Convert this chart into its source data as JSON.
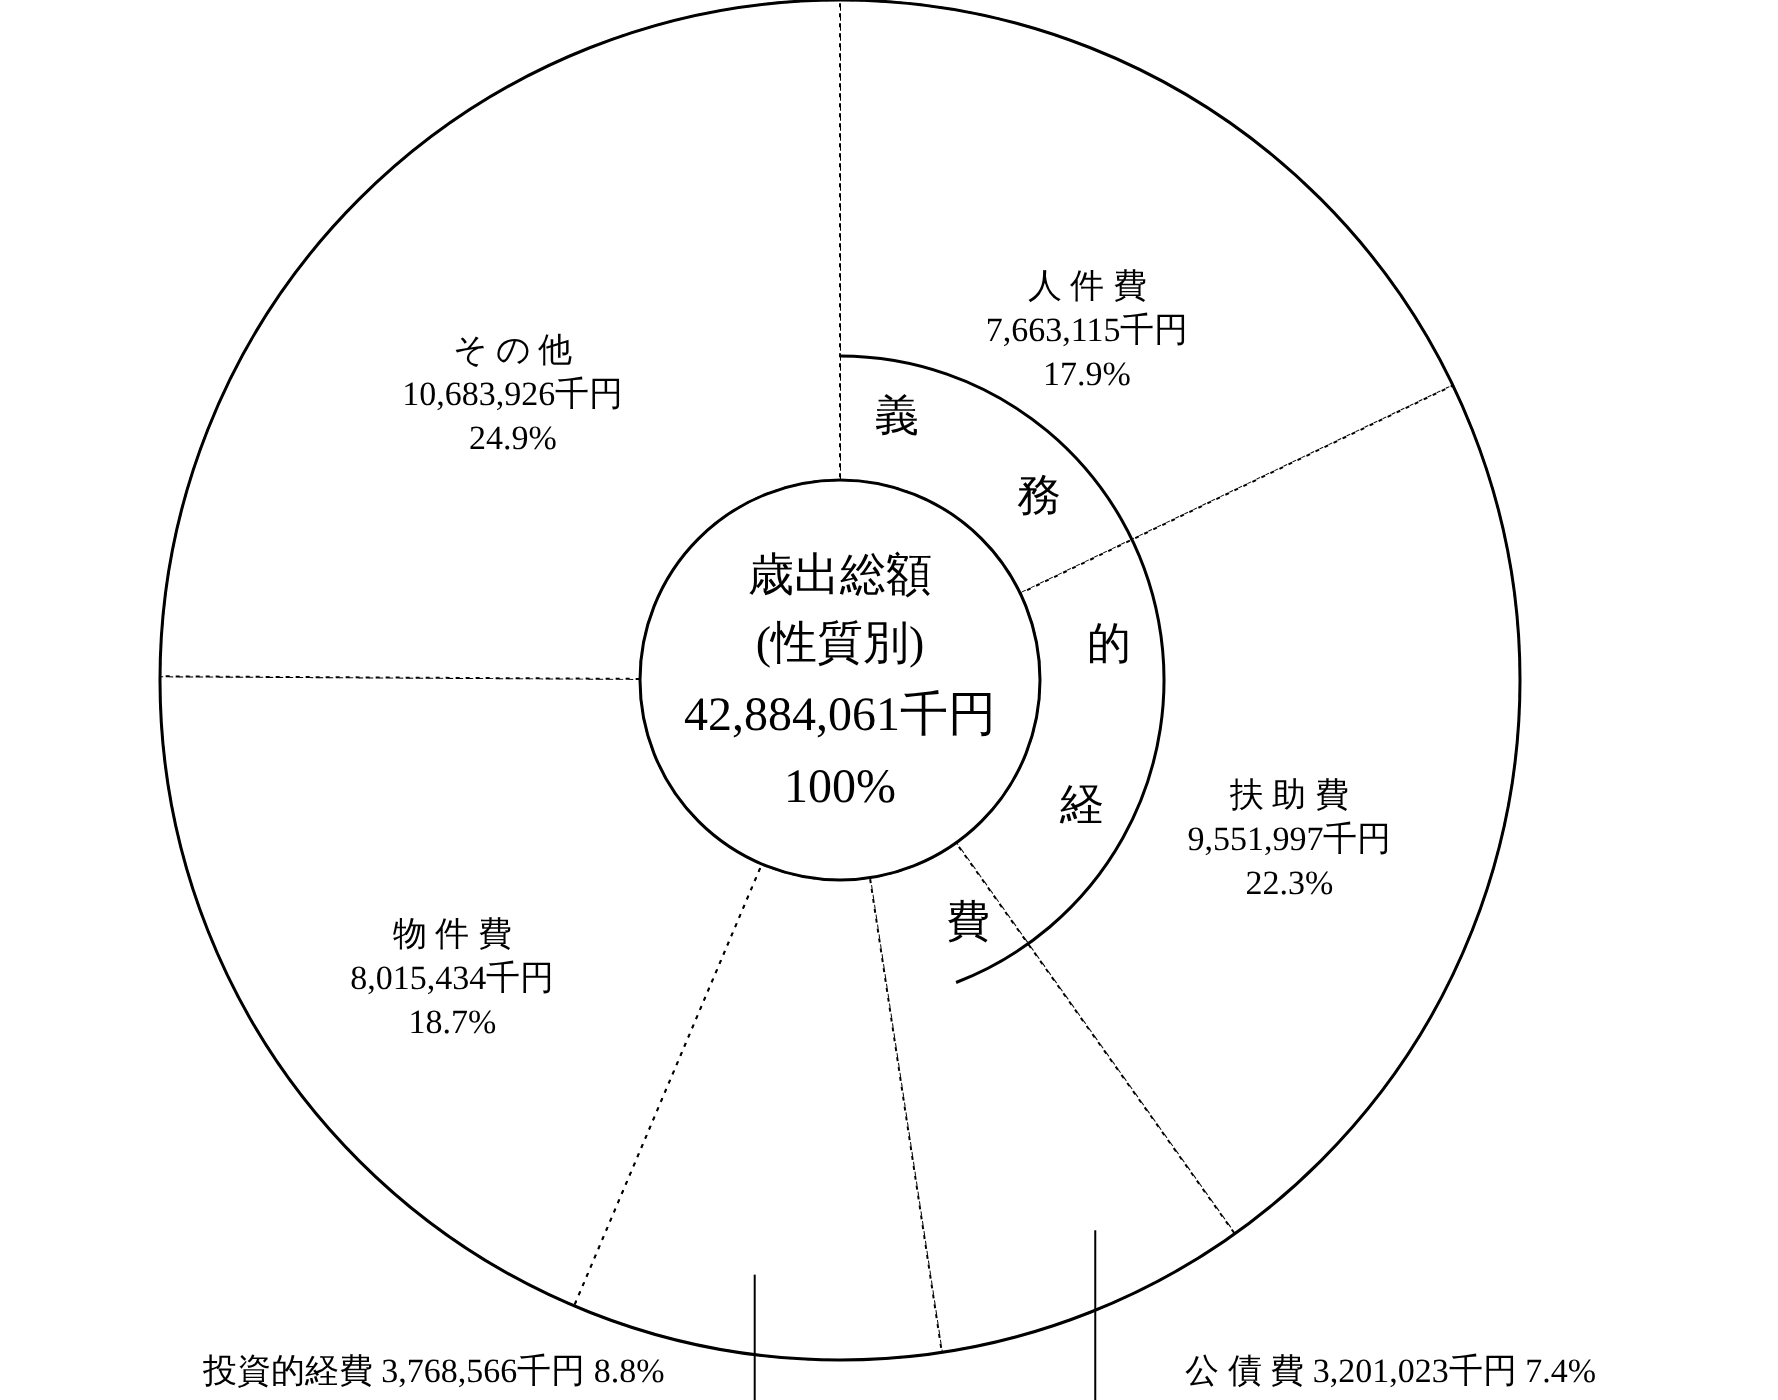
{
  "chart_data": {
    "type": "donut",
    "title": "歳出総額",
    "subtitle": "(性質別)",
    "annotations": [
      "42,884,061千円",
      "100%",
      "義",
      "務",
      "的",
      "経",
      "費"
    ],
    "categories": [
      "人 件 費",
      "扶 助 費",
      "公 債 費",
      "投資的経費",
      "物 件 費",
      "そ の 他"
    ],
    "values": [
      7663115,
      9551997,
      3201023,
      3768566,
      8015434,
      10683926
    ],
    "colors": [
      "#ffffff",
      "#ffffff",
      "#ffffff",
      "#ffffff",
      "#ffffff",
      "#ffffff"
    ],
    "value_labels": [
      "7,663,115千円\n17.9%",
      "9,551,997千円\n22.3%",
      "3,201,023千円\n7.4%",
      "3,768,566千円\n8.8%",
      "8,015,434千円\n18.7%",
      "10,683,926千円\n24.9%"
    ]
  }
}
